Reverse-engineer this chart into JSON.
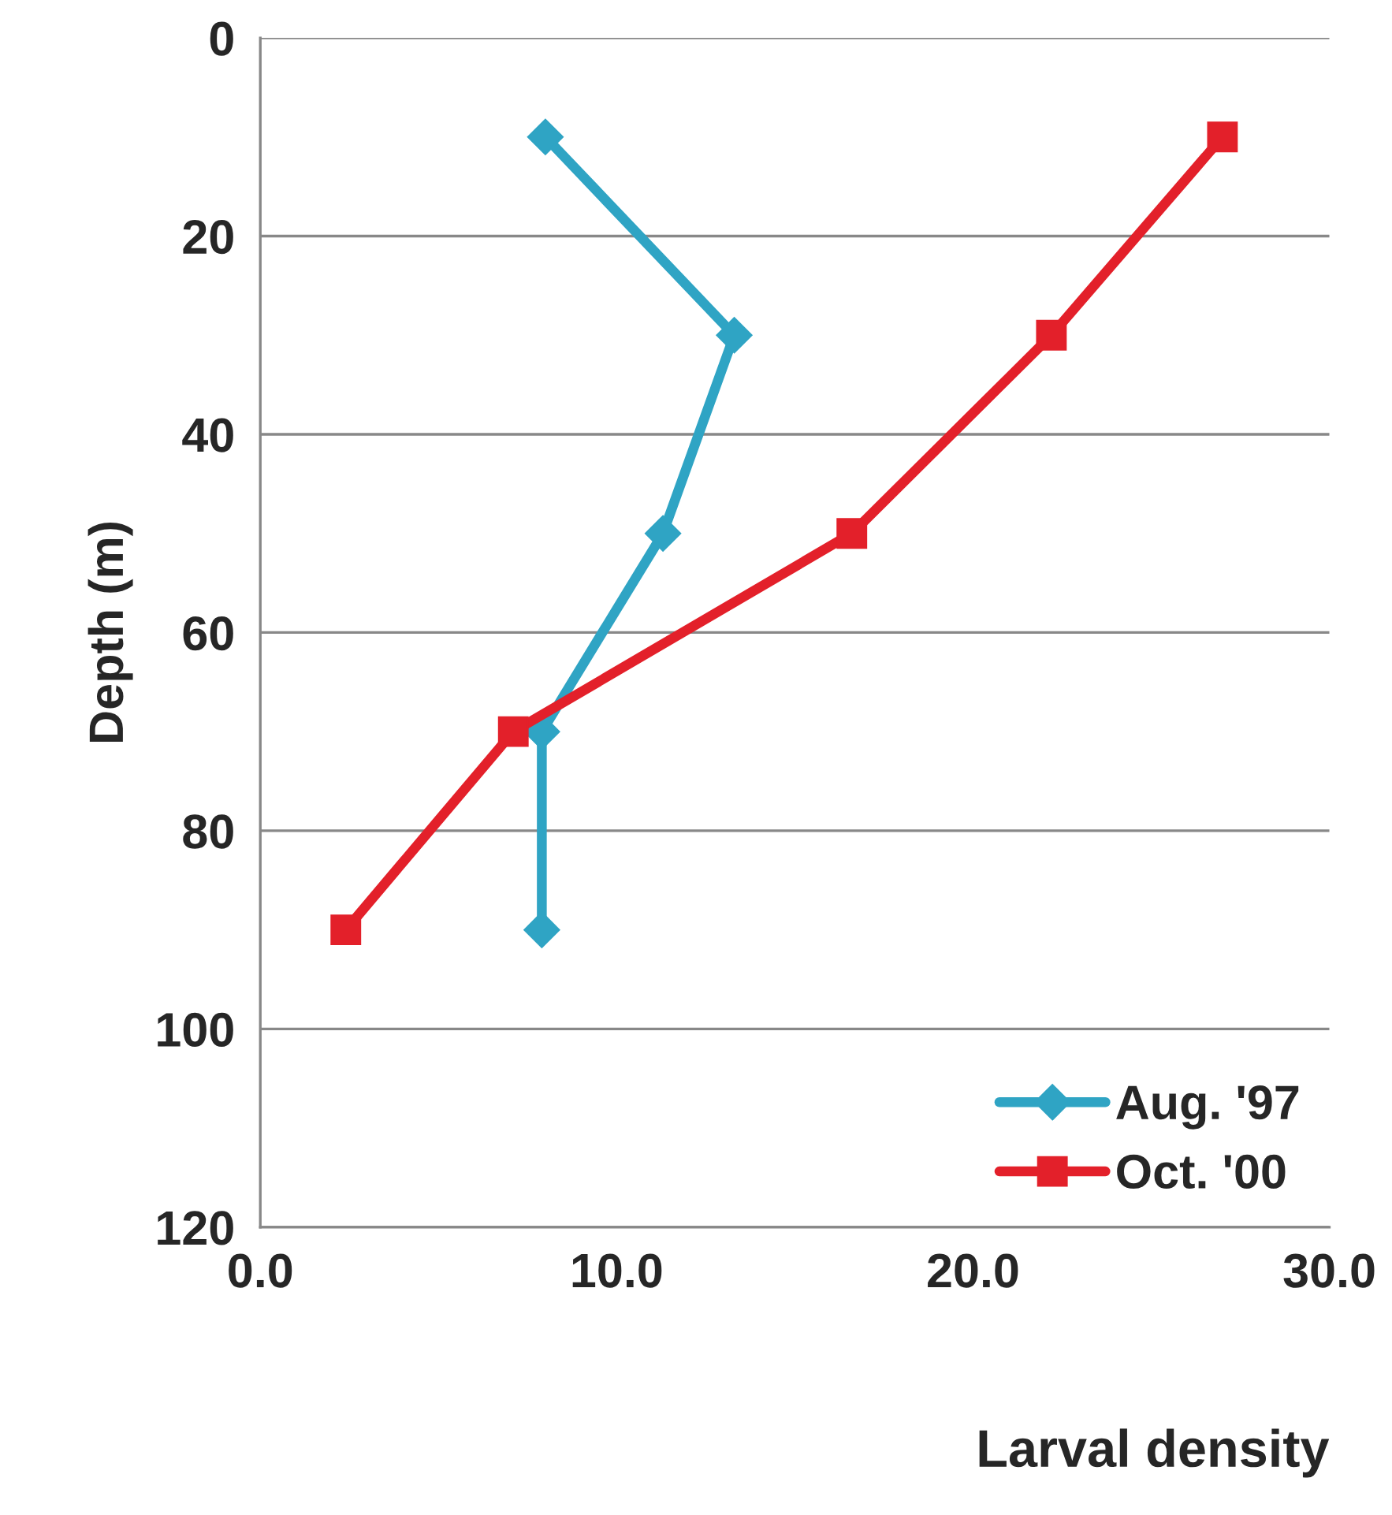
{
  "chart_data": {
    "type": "line",
    "xlabel": "Larval density",
    "ylabel": "Depth (m)",
    "series": [
      {
        "name": "Aug. '97",
        "color": "#2fa4c4",
        "marker": "diamond",
        "x": [
          8.0,
          13.3,
          11.3,
          7.9,
          7.9
        ],
        "values": [
          10,
          30,
          50,
          70,
          90
        ]
      },
      {
        "name": "Oct. '00",
        "color": "#e3202a",
        "marker": "square",
        "x": [
          27.0,
          22.2,
          16.6,
          7.1,
          2.4
        ],
        "values": [
          10,
          30,
          50,
          70,
          90
        ]
      }
    ],
    "xlim": [
      0,
      30
    ],
    "xticks": [
      {
        "value": 0,
        "label": "0.0"
      },
      {
        "value": 10,
        "label": "10.0"
      },
      {
        "value": 20,
        "label": "20.0"
      },
      {
        "value": 30,
        "label": "30.0"
      }
    ],
    "ylim": [
      120,
      0
    ],
    "yticks": [
      0,
      20,
      40,
      60,
      80,
      100,
      120
    ],
    "grid": "y",
    "legend": "bottom right",
    "line_style": "solid"
  }
}
